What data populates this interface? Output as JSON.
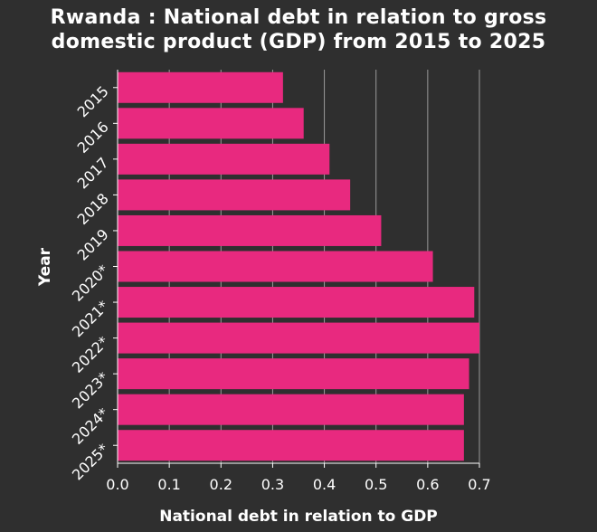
{
  "chart_data": {
    "type": "bar",
    "orientation": "horizontal",
    "title_line1": "Rwanda : National debt in relation to gross",
    "title_line2": "domestic product (GDP) from 2015 to 2025",
    "xlabel": "National debt in relation to GDP",
    "ylabel": "Year",
    "categories": [
      "2015",
      "2016",
      "2017",
      "2018",
      "2019",
      "2020*",
      "2021*",
      "2022*",
      "2023*",
      "2024*",
      "2025*"
    ],
    "values": [
      0.32,
      0.36,
      0.41,
      0.45,
      0.51,
      0.61,
      0.69,
      0.7,
      0.68,
      0.67,
      0.67
    ],
    "xlim": [
      0,
      0.7
    ],
    "xticks": [
      "0.0",
      "0.1",
      "0.2",
      "0.3",
      "0.4",
      "0.5",
      "0.6",
      "0.7"
    ],
    "grid": "vertical",
    "bar_color": "#e8297f",
    "background_color": "#2f2f2f",
    "grid_color": "#9a9a9a"
  }
}
